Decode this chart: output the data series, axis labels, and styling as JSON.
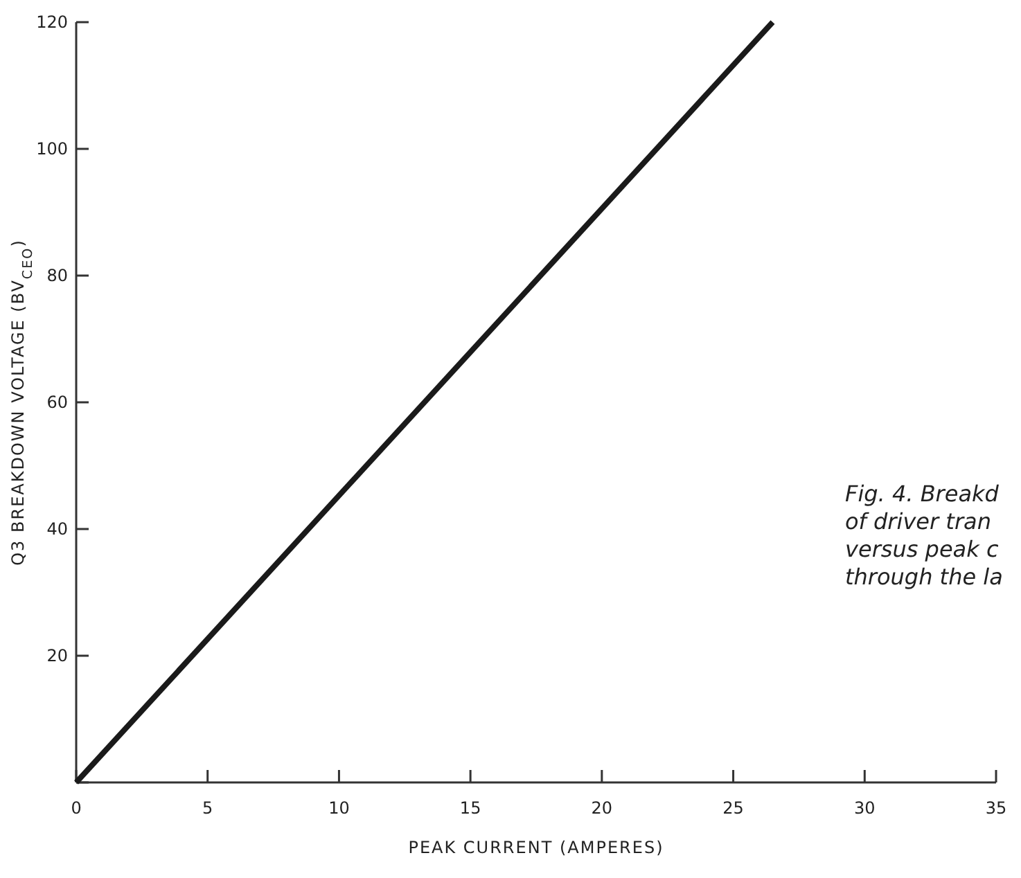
{
  "chart_data": {
    "type": "line",
    "xlabel": "PEAK CURRENT (AMPERES)",
    "ylabel": "Q3 BREAKDOWN VOLTAGE (BV$_{CEO}$)",
    "x": [
      0,
      26.5
    ],
    "series": [
      {
        "color": "#1a1a1a",
        "values": [
          0,
          120
        ]
      }
    ],
    "xlim": [
      0,
      35
    ],
    "xticks": [
      0,
      5,
      10,
      15,
      20,
      25,
      30,
      35
    ],
    "ylim": [
      0,
      120
    ],
    "yticks": [
      {
        "value": 0,
        "label": null
      },
      20,
      40,
      60,
      80,
      100,
      120
    ],
    "marker": "none",
    "line_style": "solid",
    "annotations": [
      "Fig. 4. Breakd\nof driver tran\nversus peak c\nthrough the la"
    ]
  }
}
